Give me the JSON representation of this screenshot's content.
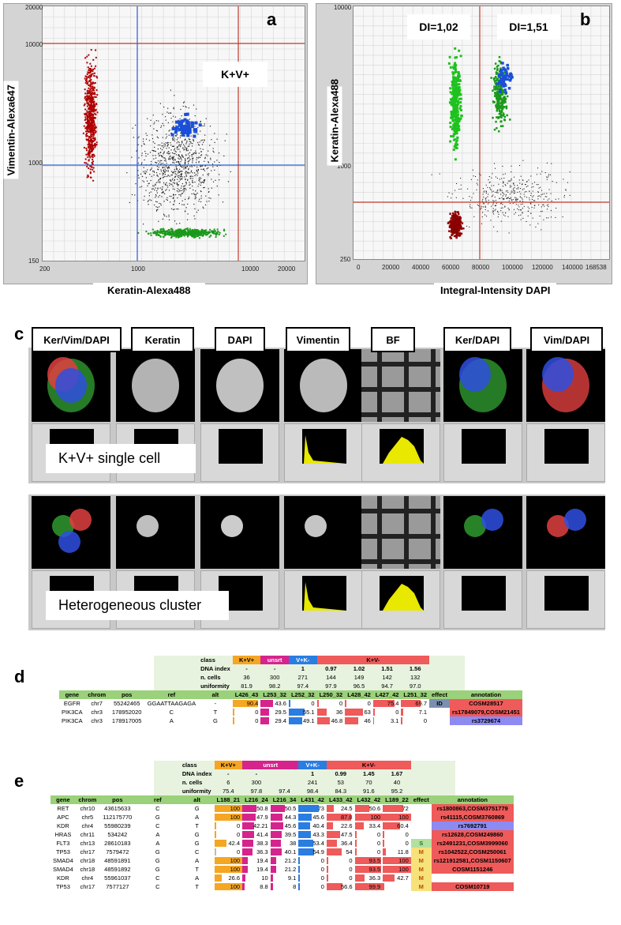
{
  "panel_letters": {
    "a": "a",
    "b": "b",
    "c": "c",
    "d": "d",
    "e": "e"
  },
  "plot_a": {
    "xlabel": "Keratin-Alexa488",
    "ylabel": "Vimentin-Alexa647",
    "x_ticks": [
      "200",
      "1000",
      "10000",
      "20000"
    ],
    "y_ticks": [
      "20000",
      "10000",
      "1000",
      "150"
    ],
    "gate_label": "K+V+"
  },
  "plot_b": {
    "xlabel": "Integral-Intensity DAPI",
    "ylabel": "Keratin-Alexa488",
    "x_ticks": [
      "0",
      "20000",
      "40000",
      "60000",
      "80000",
      "100000",
      "120000",
      "140000",
      "168538"
    ],
    "y_ticks": [
      "10000",
      "1000",
      "250"
    ],
    "di_labels": [
      "DI=1,02",
      "DI=1,51"
    ]
  },
  "panel_c": {
    "headers": [
      "Ker/Vim/DAPI",
      "Keratin",
      "DAPI",
      "Vimentin",
      "BF",
      "Ker/DAPI",
      "Vim/DAPI"
    ],
    "row_labels": [
      "K+V+ single cell",
      "Heterogeneous cluster"
    ]
  },
  "colors": {
    "kv": "#f5a623",
    "unsrt": "#d6248d",
    "vk": "#2a7de1",
    "kvm": "#ef5a5a",
    "green": "#9ad17a"
  },
  "table_d": {
    "class_label": "class",
    "classes": [
      {
        "name": "K+V+",
        "span": 1,
        "cls": "kv"
      },
      {
        "name": "unsrt",
        "span": 1,
        "cls": "unsrt"
      },
      {
        "name": "V+K-",
        "span": 1,
        "cls": "vk"
      },
      {
        "name": "K+V-",
        "span": 4,
        "cls": "kvm"
      }
    ],
    "meta_rows": [
      {
        "label": "DNA index",
        "values": [
          "-",
          "-",
          "1",
          "0.97",
          "1.02",
          "1.51",
          "1.56"
        ]
      },
      {
        "label": "n. cells",
        "values": [
          "36",
          "300",
          "271",
          "144",
          "149",
          "142",
          "132"
        ]
      },
      {
        "label": "uniformity",
        "values": [
          "81.9",
          "98.2",
          "97.4",
          "97.9",
          "96.5",
          "94.7",
          "97.0"
        ]
      }
    ],
    "header": [
      "gene",
      "chrom",
      "pos",
      "ref",
      "alt",
      "L426_43",
      "L253_32",
      "L252_32",
      "L250_32",
      "L428_42",
      "L427_42",
      "L251_32",
      "effect",
      "annotation"
    ],
    "sample_classes": [
      "kv",
      "unsrt",
      "vk",
      "kvm",
      "kvm",
      "kvm",
      "kvm"
    ],
    "rows": [
      {
        "gene": "EGFR",
        "chrom": "chr7",
        "pos": "55242465",
        "ref": "GGAATTAAGAGA",
        "alt": "-",
        "values": [
          "90.4",
          "43.6",
          "0",
          "0",
          "0",
          "75.4",
          "69.7"
        ],
        "fracs": [
          0.904,
          0.436,
          0,
          0,
          0,
          0.754,
          0.697
        ],
        "effect": "ID",
        "effect_cls": "eff-id",
        "annotation": "COSM28517",
        "ann_cls": "ann-red"
      },
      {
        "gene": "PIK3CA",
        "chrom": "chr3",
        "pos": "178952020",
        "ref": "C",
        "alt": "T",
        "values": [
          "0",
          "29.5",
          "55.1",
          "36",
          "63",
          "0",
          "7.1"
        ],
        "fracs": [
          0,
          0.295,
          0.551,
          0.36,
          0.63,
          0,
          0.071
        ],
        "effect": "",
        "effect_cls": "",
        "annotation": "rs17849079,COSM21451",
        "ann_cls": "ann-red"
      },
      {
        "gene": "PIK3CA",
        "chrom": "chr3",
        "pos": "178917005",
        "ref": "A",
        "alt": "G",
        "values": [
          "0",
          "29.4",
          "49.1",
          "46.8",
          "46",
          "3.1",
          "0"
        ],
        "fracs": [
          0,
          0.294,
          0.491,
          0.468,
          0.46,
          0.031,
          0
        ],
        "effect": "",
        "effect_cls": "",
        "annotation": "rs3729674",
        "ann_cls": "ann-blue"
      }
    ]
  },
  "table_e": {
    "class_label": "class",
    "classes": [
      {
        "name": "K+V+",
        "span": 1,
        "cls": "kv"
      },
      {
        "name": "unsrt",
        "span": 2,
        "cls": "unsrt"
      },
      {
        "name": "V+K-",
        "span": 1,
        "cls": "vk"
      },
      {
        "name": "K+V-",
        "span": 3,
        "cls": "kvm"
      }
    ],
    "meta_rows": [
      {
        "label": "DNA index",
        "values": [
          "-",
          "-",
          "",
          "1",
          "0.99",
          "1.45",
          "1.67"
        ]
      },
      {
        "label": "n. cells",
        "values": [
          "6",
          "300",
          "",
          "241",
          "53",
          "70",
          "40"
        ]
      },
      {
        "label": "uniformity",
        "values": [
          "75.4",
          "97.8",
          "97.4",
          "98.4",
          "84.3",
          "91.6",
          "95.2"
        ]
      }
    ],
    "header": [
      "gene",
      "chrom",
      "pos",
      "ref",
      "alt",
      "L188_21",
      "L216_24",
      "L216_34",
      "L431_42",
      "L433_42",
      "L432_42",
      "L189_22",
      "effect",
      "annotation"
    ],
    "sample_classes": [
      "kv",
      "unsrt",
      "unsrt",
      "vk",
      "kvm",
      "kvm",
      "kvm"
    ],
    "rows": [
      {
        "gene": "RET",
        "chrom": "chr10",
        "pos": "43615633",
        "ref": "C",
        "alt": "G",
        "values": [
          "100",
          "50.8",
          "50.5",
          "73",
          "24.5",
          "50.6",
          "72"
        ],
        "fracs": [
          1,
          0.508,
          0.505,
          0.73,
          0.245,
          0.506,
          0.72
        ],
        "effect": "",
        "effect_cls": "",
        "annotation": "rs1800863,COSM3751779",
        "ann_cls": "ann-red"
      },
      {
        "gene": "APC",
        "chrom": "chr5",
        "pos": "112175770",
        "ref": "G",
        "alt": "A",
        "values": [
          "100",
          "47.9",
          "44.3",
          "45.6",
          "87.8",
          "100",
          "100"
        ],
        "fracs": [
          1,
          0.479,
          0.443,
          0.456,
          0.878,
          1,
          1
        ],
        "effect": "",
        "effect_cls": "",
        "annotation": "rs41115,COSM3760869",
        "ann_cls": "ann-red"
      },
      {
        "gene": "KDR",
        "chrom": "chr4",
        "pos": "55980239",
        "ref": "C",
        "alt": "T",
        "values": [
          "0",
          "42.21",
          "45.6",
          "40.4",
          "22.6",
          "33.4",
          "60.4"
        ],
        "fracs": [
          0,
          0.422,
          0.456,
          0.404,
          0.226,
          0.334,
          0.604
        ],
        "effect": "",
        "effect_cls": "",
        "annotation": "rs7692791",
        "ann_cls": "ann-blue"
      },
      {
        "gene": "HRAS",
        "chrom": "chr11",
        "pos": "534242",
        "ref": "A",
        "alt": "G",
        "values": [
          "0",
          "41.4",
          "39.5",
          "43.3",
          "47.5",
          "0",
          "0"
        ],
        "fracs": [
          0,
          0.414,
          0.395,
          0.433,
          0.475,
          0,
          0
        ],
        "effect": "",
        "effect_cls": "",
        "annotation": "rs12628,COSM249860",
        "ann_cls": "ann-red"
      },
      {
        "gene": "FLT3",
        "chrom": "chr13",
        "pos": "28610183",
        "ref": "A",
        "alt": "G",
        "values": [
          "42.4",
          "38.3",
          "38",
          "53.4",
          "36.4",
          "0",
          "0"
        ],
        "fracs": [
          0.424,
          0.383,
          0.38,
          0.534,
          0.364,
          0,
          0
        ],
        "effect": "S",
        "effect_cls": "eff-s",
        "annotation": "rs2491231,COSM3999060",
        "ann_cls": "ann-red"
      },
      {
        "gene": "TP53",
        "chrom": "chr17",
        "pos": "7579472",
        "ref": "G",
        "alt": "C",
        "values": [
          "0",
          "36.3",
          "40.1",
          "54.9",
          "54",
          "0",
          "11.8"
        ],
        "fracs": [
          0,
          0.363,
          0.401,
          0.549,
          0.54,
          0,
          0.118
        ],
        "effect": "M",
        "effect_cls": "eff-m",
        "annotation": "rs1042522,COSM250061",
        "ann_cls": "ann-red"
      },
      {
        "gene": "SMAD4",
        "chrom": "chr18",
        "pos": "48591891",
        "ref": "G",
        "alt": "A",
        "values": [
          "100",
          "19.4",
          "21.2",
          "0",
          "0",
          "93.5",
          "100"
        ],
        "fracs": [
          1,
          0.194,
          0.212,
          0,
          0,
          0.935,
          1
        ],
        "effect": "M",
        "effect_cls": "eff-m",
        "annotation": "rs121912581,COSM1150607",
        "ann_cls": "ann-red"
      },
      {
        "gene": "SMAD4",
        "chrom": "chr18",
        "pos": "48591892",
        "ref": "G",
        "alt": "T",
        "values": [
          "100",
          "19.4",
          "21.2",
          "0",
          "0",
          "93.5",
          "100"
        ],
        "fracs": [
          1,
          0.194,
          0.212,
          0,
          0,
          0.935,
          1
        ],
        "effect": "M",
        "effect_cls": "eff-m",
        "annotation": "COSM1151246",
        "ann_cls": "ann-red"
      },
      {
        "gene": "KDR",
        "chrom": "chr4",
        "pos": "55961037",
        "ref": "C",
        "alt": "A",
        "values": [
          "26.6",
          "10",
          "9.1",
          "0",
          "0",
          "36.3",
          "42.7"
        ],
        "fracs": [
          0.266,
          0.1,
          0.091,
          0,
          0,
          0.363,
          0.427
        ],
        "effect": "M",
        "effect_cls": "eff-m",
        "annotation": "",
        "ann_cls": ""
      },
      {
        "gene": "TP53",
        "chrom": "chr17",
        "pos": "7577127",
        "ref": "C",
        "alt": "T",
        "values": [
          "100",
          "8.8",
          "8",
          "0",
          "56.6",
          "99.9",
          ""
        ],
        "fracs": [
          1,
          0.088,
          0.08,
          0,
          0.566,
          0.999,
          0
        ],
        "effect": "M",
        "effect_cls": "eff-m",
        "annotation": "COSM10719",
        "ann_cls": "ann-red"
      }
    ]
  }
}
